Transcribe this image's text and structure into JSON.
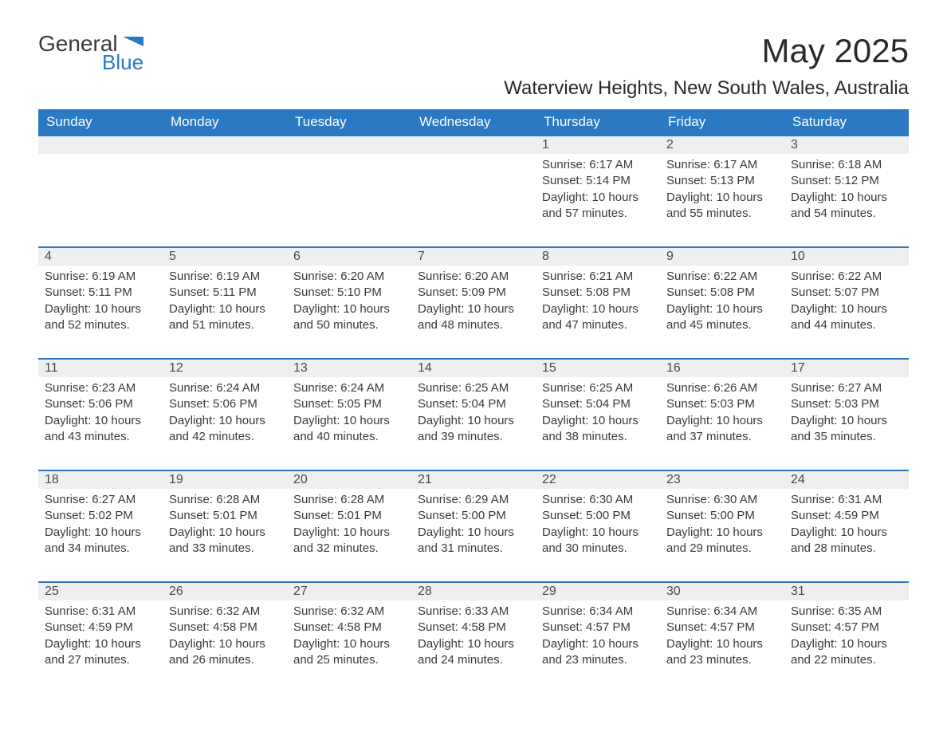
{
  "brand": {
    "general": "General",
    "blue": "Blue",
    "accent_color": "#2b79c2"
  },
  "title": "May 2025",
  "location": "Waterview Heights, New South Wales, Australia",
  "day_headers": [
    "Sunday",
    "Monday",
    "Tuesday",
    "Wednesday",
    "Thursday",
    "Friday",
    "Saturday"
  ],
  "colors": {
    "header_bg": "#2b79c2",
    "header_text": "#ffffff",
    "band_bg": "#efefef",
    "band_border": "#2b79c2",
    "body_text": "#3a3a3a"
  },
  "weeks": [
    [
      null,
      null,
      null,
      null,
      {
        "n": "1",
        "sunrise": "6:17 AM",
        "sunset": "5:14 PM",
        "daylight": "10 hours and 57 minutes."
      },
      {
        "n": "2",
        "sunrise": "6:17 AM",
        "sunset": "5:13 PM",
        "daylight": "10 hours and 55 minutes."
      },
      {
        "n": "3",
        "sunrise": "6:18 AM",
        "sunset": "5:12 PM",
        "daylight": "10 hours and 54 minutes."
      }
    ],
    [
      {
        "n": "4",
        "sunrise": "6:19 AM",
        "sunset": "5:11 PM",
        "daylight": "10 hours and 52 minutes."
      },
      {
        "n": "5",
        "sunrise": "6:19 AM",
        "sunset": "5:11 PM",
        "daylight": "10 hours and 51 minutes."
      },
      {
        "n": "6",
        "sunrise": "6:20 AM",
        "sunset": "5:10 PM",
        "daylight": "10 hours and 50 minutes."
      },
      {
        "n": "7",
        "sunrise": "6:20 AM",
        "sunset": "5:09 PM",
        "daylight": "10 hours and 48 minutes."
      },
      {
        "n": "8",
        "sunrise": "6:21 AM",
        "sunset": "5:08 PM",
        "daylight": "10 hours and 47 minutes."
      },
      {
        "n": "9",
        "sunrise": "6:22 AM",
        "sunset": "5:08 PM",
        "daylight": "10 hours and 45 minutes."
      },
      {
        "n": "10",
        "sunrise": "6:22 AM",
        "sunset": "5:07 PM",
        "daylight": "10 hours and 44 minutes."
      }
    ],
    [
      {
        "n": "11",
        "sunrise": "6:23 AM",
        "sunset": "5:06 PM",
        "daylight": "10 hours and 43 minutes."
      },
      {
        "n": "12",
        "sunrise": "6:24 AM",
        "sunset": "5:06 PM",
        "daylight": "10 hours and 42 minutes."
      },
      {
        "n": "13",
        "sunrise": "6:24 AM",
        "sunset": "5:05 PM",
        "daylight": "10 hours and 40 minutes."
      },
      {
        "n": "14",
        "sunrise": "6:25 AM",
        "sunset": "5:04 PM",
        "daylight": "10 hours and 39 minutes."
      },
      {
        "n": "15",
        "sunrise": "6:25 AM",
        "sunset": "5:04 PM",
        "daylight": "10 hours and 38 minutes."
      },
      {
        "n": "16",
        "sunrise": "6:26 AM",
        "sunset": "5:03 PM",
        "daylight": "10 hours and 37 minutes."
      },
      {
        "n": "17",
        "sunrise": "6:27 AM",
        "sunset": "5:03 PM",
        "daylight": "10 hours and 35 minutes."
      }
    ],
    [
      {
        "n": "18",
        "sunrise": "6:27 AM",
        "sunset": "5:02 PM",
        "daylight": "10 hours and 34 minutes."
      },
      {
        "n": "19",
        "sunrise": "6:28 AM",
        "sunset": "5:01 PM",
        "daylight": "10 hours and 33 minutes."
      },
      {
        "n": "20",
        "sunrise": "6:28 AM",
        "sunset": "5:01 PM",
        "daylight": "10 hours and 32 minutes."
      },
      {
        "n": "21",
        "sunrise": "6:29 AM",
        "sunset": "5:00 PM",
        "daylight": "10 hours and 31 minutes."
      },
      {
        "n": "22",
        "sunrise": "6:30 AM",
        "sunset": "5:00 PM",
        "daylight": "10 hours and 30 minutes."
      },
      {
        "n": "23",
        "sunrise": "6:30 AM",
        "sunset": "5:00 PM",
        "daylight": "10 hours and 29 minutes."
      },
      {
        "n": "24",
        "sunrise": "6:31 AM",
        "sunset": "4:59 PM",
        "daylight": "10 hours and 28 minutes."
      }
    ],
    [
      {
        "n": "25",
        "sunrise": "6:31 AM",
        "sunset": "4:59 PM",
        "daylight": "10 hours and 27 minutes."
      },
      {
        "n": "26",
        "sunrise": "6:32 AM",
        "sunset": "4:58 PM",
        "daylight": "10 hours and 26 minutes."
      },
      {
        "n": "27",
        "sunrise": "6:32 AM",
        "sunset": "4:58 PM",
        "daylight": "10 hours and 25 minutes."
      },
      {
        "n": "28",
        "sunrise": "6:33 AM",
        "sunset": "4:58 PM",
        "daylight": "10 hours and 24 minutes."
      },
      {
        "n": "29",
        "sunrise": "6:34 AM",
        "sunset": "4:57 PM",
        "daylight": "10 hours and 23 minutes."
      },
      {
        "n": "30",
        "sunrise": "6:34 AM",
        "sunset": "4:57 PM",
        "daylight": "10 hours and 23 minutes."
      },
      {
        "n": "31",
        "sunrise": "6:35 AM",
        "sunset": "4:57 PM",
        "daylight": "10 hours and 22 minutes."
      }
    ]
  ],
  "labels": {
    "sunrise": "Sunrise: ",
    "sunset": "Sunset: ",
    "daylight": "Daylight: "
  }
}
